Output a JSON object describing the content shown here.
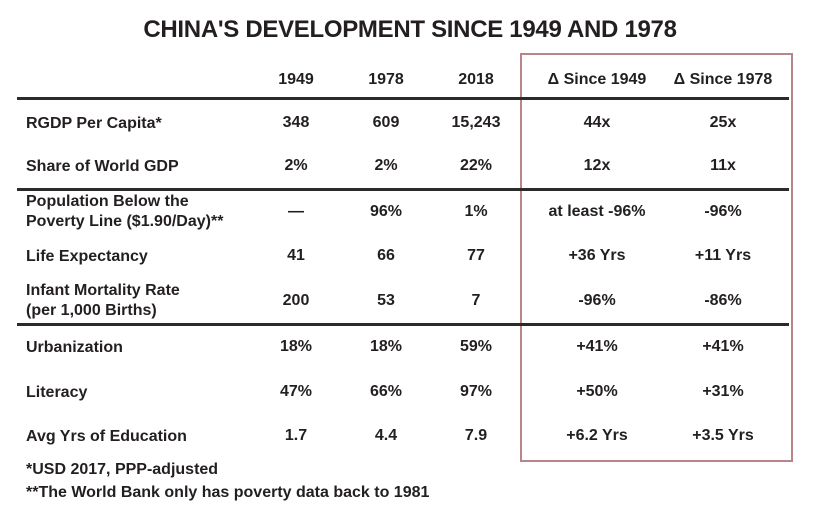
{
  "title": "CHINA'S DEVELOPMENT SINCE 1949 AND 1978",
  "accent_color": "#b9858a",
  "columns": [
    "1949",
    "1978",
    "2018",
    "Δ Since 1949",
    "Δ Since 1978"
  ],
  "rows": [
    {
      "label": "RGDP Per Capita*",
      "values": [
        "348",
        "609",
        "15,243",
        "44x",
        "25x"
      ]
    },
    {
      "label": "Share of World GDP",
      "values": [
        "2%",
        "2%",
        "22%",
        "12x",
        "11x"
      ]
    },
    {
      "label_lines": [
        "Population Below the",
        "Poverty Line ($1.90/Day)**"
      ],
      "values": [
        "—",
        "96%",
        "1%",
        "at least -96%",
        "-96%"
      ]
    },
    {
      "label": "Life Expectancy",
      "values": [
        "41",
        "66",
        "77",
        "+36 Yrs",
        "+11 Yrs"
      ]
    },
    {
      "label_lines": [
        "Infant Mortality Rate",
        "(per 1,000 Births)"
      ],
      "values": [
        "200",
        "53",
        "7",
        "-96%",
        "-86%"
      ]
    },
    {
      "label": "Urbanization",
      "values": [
        "18%",
        "18%",
        "59%",
        "+41%",
        "+41%"
      ]
    },
    {
      "label": "Literacy",
      "values": [
        "47%",
        "66%",
        "97%",
        "+50%",
        "+31%"
      ]
    },
    {
      "label": "Avg Yrs of Education",
      "values": [
        "1.7",
        "4.4",
        "7.9",
        "+6.2 Yrs",
        "+3.5 Yrs"
      ]
    }
  ],
  "footnotes": [
    "*USD 2017, PPP-adjusted",
    "**The World Bank only has poverty data back to 1981"
  ]
}
